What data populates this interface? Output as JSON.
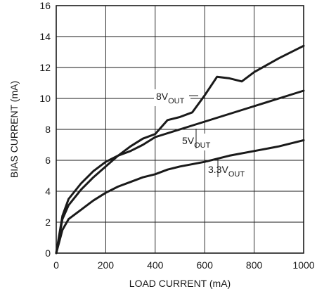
{
  "chart_data": {
    "type": "line",
    "title": "",
    "xlabel": "LOAD CURRENT (mA)",
    "ylabel": "BIAS CURRENT (mA)",
    "xlim": [
      0,
      1000
    ],
    "ylim": [
      0,
      16
    ],
    "x_ticks": [
      0,
      200,
      400,
      600,
      800,
      1000
    ],
    "y_ticks": [
      0,
      2,
      4,
      6,
      8,
      10,
      12,
      14,
      16
    ],
    "x_tick_labels": [
      "0",
      "200",
      "400",
      "600",
      "800",
      "1000"
    ],
    "y_tick_labels": [
      "0",
      "2",
      "4",
      "6",
      "8",
      "10",
      "12",
      "14",
      "16"
    ],
    "grid": true,
    "line_color": "#1a1a1a",
    "series": [
      {
        "label_main": "8V",
        "label_sub": "OUT",
        "x": [
          0,
          25,
          50,
          100,
          150,
          200,
          250,
          300,
          350,
          400,
          450,
          500,
          550,
          600,
          650,
          700,
          750,
          800,
          900,
          1000
        ],
        "y": [
          0,
          2.2,
          3.1,
          4.1,
          4.9,
          5.6,
          6.3,
          6.9,
          7.4,
          7.7,
          8.6,
          8.8,
          9.1,
          10.2,
          11.4,
          11.3,
          11.1,
          11.7,
          12.6,
          13.4
        ]
      },
      {
        "label_main": "5V",
        "label_sub": "OUT",
        "x": [
          0,
          25,
          50,
          100,
          150,
          200,
          250,
          300,
          350,
          400,
          500,
          600,
          700,
          800,
          900,
          1000
        ],
        "y": [
          0,
          2.4,
          3.5,
          4.5,
          5.3,
          5.9,
          6.3,
          6.6,
          7.0,
          7.5,
          8.0,
          8.5,
          9.0,
          9.5,
          10.0,
          10.5
        ]
      },
      {
        "label_main": "3.3V",
        "label_sub": "OUT",
        "x": [
          0,
          25,
          50,
          100,
          150,
          200,
          250,
          300,
          350,
          400,
          450,
          500,
          600,
          700,
          800,
          900,
          1000
        ],
        "y": [
          0,
          1.5,
          2.2,
          2.8,
          3.4,
          3.9,
          4.3,
          4.6,
          4.9,
          5.1,
          5.4,
          5.6,
          5.9,
          6.3,
          6.6,
          6.9,
          7.3
        ]
      }
    ]
  }
}
